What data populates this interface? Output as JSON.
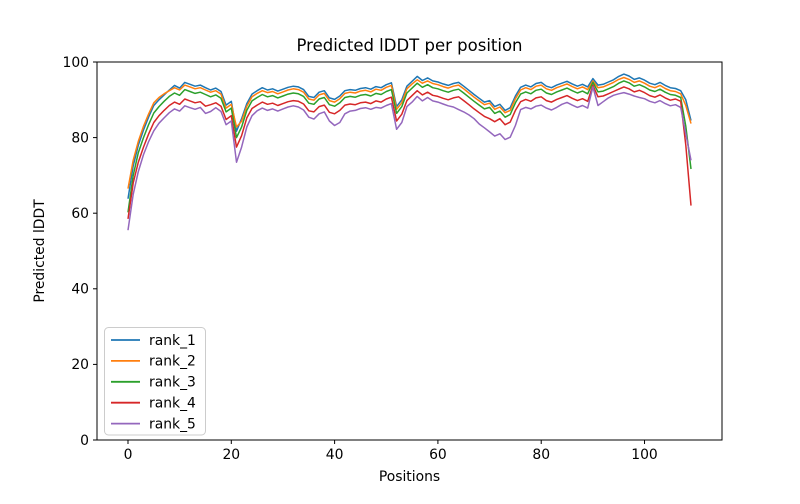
{
  "chart_data": {
    "type": "line",
    "title": "Predicted lDDT per position",
    "xlabel": "Positions",
    "ylabel": "Predicted lDDT",
    "xlim": [
      -6,
      115
    ],
    "ylim": [
      0,
      100
    ],
    "xticks": [
      0,
      20,
      40,
      60,
      80,
      100
    ],
    "yticks": [
      0,
      20,
      40,
      60,
      80,
      100
    ],
    "grid": false,
    "legend_position": "lower left",
    "legend_entries": [
      "rank_1",
      "rank_2",
      "rank_3",
      "rank_4",
      "rank_5"
    ],
    "x": [
      0,
      1,
      2,
      3,
      4,
      5,
      6,
      7,
      8,
      9,
      10,
      11,
      12,
      13,
      14,
      15,
      16,
      17,
      18,
      19,
      20,
      21,
      22,
      23,
      24,
      25,
      26,
      27,
      28,
      29,
      30,
      31,
      32,
      33,
      34,
      35,
      36,
      37,
      38,
      39,
      40,
      41,
      42,
      43,
      44,
      45,
      46,
      47,
      48,
      49,
      50,
      51,
      52,
      53,
      54,
      55,
      56,
      57,
      58,
      59,
      60,
      61,
      62,
      63,
      64,
      65,
      66,
      67,
      68,
      69,
      70,
      71,
      72,
      73,
      74,
      75,
      76,
      77,
      78,
      79,
      80,
      81,
      82,
      83,
      84,
      85,
      86,
      87,
      88,
      89,
      90,
      91,
      92,
      93,
      94,
      95,
      96,
      97,
      98,
      99,
      100,
      101,
      102,
      103,
      104,
      105,
      106,
      107,
      108,
      109
    ],
    "series": [
      {
        "name": "rank_1",
        "color": "#1f77b4",
        "values": [
          63.8,
          72.5,
          78.0,
          82.0,
          85.5,
          88.5,
          90.0,
          91.3,
          92.6,
          93.8,
          93.1,
          94.6,
          94.1,
          93.6,
          93.9,
          93.2,
          92.6,
          93.1,
          92.2,
          88.6,
          89.6,
          81.7,
          85.0,
          89.0,
          91.5,
          92.4,
          93.2,
          92.6,
          92.9,
          92.3,
          92.8,
          93.3,
          93.6,
          93.4,
          92.7,
          90.9,
          90.6,
          92.0,
          92.4,
          90.5,
          90.1,
          91.0,
          92.4,
          92.7,
          92.5,
          93.0,
          93.2,
          92.8,
          93.5,
          93.2,
          94.0,
          94.5,
          88.2,
          90.0,
          93.6,
          94.9,
          96.2,
          95.1,
          95.8,
          95.0,
          94.7,
          94.2,
          93.8,
          94.3,
          94.6,
          93.6,
          92.5,
          91.4,
          90.4,
          89.4,
          89.8,
          88.2,
          88.8,
          87.2,
          87.9,
          91.0,
          93.3,
          93.9,
          93.4,
          94.3,
          94.6,
          93.6,
          93.2,
          93.9,
          94.4,
          94.9,
          94.2,
          93.6,
          94.1,
          93.4,
          95.6,
          93.9,
          94.1,
          94.7,
          95.3,
          96.2,
          96.8,
          96.3,
          95.4,
          95.8,
          95.2,
          94.4,
          94.0,
          94.6,
          93.8,
          93.2,
          93.0,
          92.4,
          90.0,
          84.5
        ]
      },
      {
        "name": "rank_2",
        "color": "#ff7f0e",
        "values": [
          66.5,
          74.0,
          79.0,
          83.0,
          86.3,
          89.2,
          90.6,
          91.6,
          92.4,
          93.2,
          92.6,
          93.9,
          93.4,
          92.9,
          93.2,
          92.6,
          92.0,
          92.4,
          91.5,
          87.8,
          88.8,
          82.8,
          84.3,
          88.3,
          90.8,
          91.7,
          92.4,
          91.9,
          92.2,
          91.6,
          92.1,
          92.6,
          92.9,
          92.7,
          92.0,
          90.2,
          89.9,
          91.3,
          91.7,
          89.8,
          89.4,
          90.3,
          91.7,
          92.0,
          91.8,
          92.3,
          92.5,
          92.1,
          92.8,
          92.5,
          93.3,
          93.8,
          87.5,
          89.2,
          92.9,
          94.2,
          95.3,
          94.4,
          95.0,
          94.3,
          94.0,
          93.5,
          93.1,
          93.6,
          93.9,
          92.9,
          91.8,
          90.7,
          89.7,
          88.7,
          89.1,
          87.5,
          88.1,
          86.6,
          87.2,
          90.3,
          92.6,
          93.2,
          92.7,
          93.6,
          93.9,
          92.9,
          92.5,
          93.2,
          93.7,
          94.2,
          93.5,
          92.9,
          93.4,
          92.7,
          95.0,
          93.2,
          93.4,
          94.0,
          94.6,
          95.4,
          95.9,
          95.4,
          94.6,
          95.0,
          94.4,
          93.6,
          93.2,
          93.8,
          93.0,
          92.4,
          92.2,
          91.6,
          88.5,
          83.7
        ]
      },
      {
        "name": "rank_3",
        "color": "#2ca02c",
        "values": [
          60.2,
          70.0,
          76.0,
          80.0,
          83.5,
          86.5,
          88.2,
          89.6,
          90.9,
          91.8,
          91.2,
          92.7,
          92.2,
          91.7,
          92.0,
          91.4,
          90.8,
          91.3,
          90.4,
          86.8,
          87.8,
          80.0,
          82.8,
          87.2,
          89.7,
          90.6,
          91.4,
          90.8,
          91.1,
          90.5,
          91.0,
          91.5,
          91.8,
          91.6,
          90.9,
          89.1,
          88.8,
          90.2,
          90.6,
          88.7,
          88.3,
          89.2,
          90.6,
          90.9,
          90.7,
          91.2,
          91.4,
          91.0,
          91.7,
          91.4,
          92.2,
          92.7,
          86.4,
          88.2,
          91.8,
          93.1,
          94.4,
          93.3,
          94.0,
          93.2,
          92.9,
          92.4,
          92.0,
          92.5,
          92.8,
          91.8,
          90.7,
          89.6,
          88.6,
          87.6,
          88.0,
          86.4,
          87.0,
          85.4,
          86.1,
          89.2,
          91.5,
          92.1,
          91.6,
          92.5,
          92.8,
          91.8,
          91.4,
          92.1,
          92.6,
          93.1,
          92.4,
          91.8,
          92.3,
          91.6,
          94.6,
          92.1,
          92.3,
          92.9,
          93.5,
          94.4,
          95.0,
          94.5,
          93.6,
          94.0,
          93.4,
          92.6,
          92.2,
          92.8,
          92.0,
          91.4,
          91.2,
          90.6,
          83.0,
          71.7
        ]
      },
      {
        "name": "rank_4",
        "color": "#d62728",
        "values": [
          58.5,
          68.0,
          73.5,
          77.5,
          81.0,
          84.0,
          85.8,
          87.2,
          88.5,
          89.4,
          88.8,
          90.2,
          89.7,
          89.2,
          89.5,
          88.3,
          88.7,
          89.2,
          88.3,
          84.8,
          85.8,
          77.5,
          80.5,
          85.2,
          87.7,
          88.6,
          89.4,
          88.8,
          89.1,
          88.5,
          89.0,
          89.5,
          89.8,
          89.6,
          88.9,
          87.1,
          86.8,
          88.2,
          88.6,
          86.7,
          86.3,
          87.2,
          88.6,
          88.9,
          88.7,
          89.2,
          89.4,
          89.0,
          89.7,
          89.4,
          90.2,
          90.7,
          84.4,
          86.2,
          89.8,
          91.1,
          92.4,
          91.3,
          92.0,
          91.2,
          90.9,
          90.4,
          90.0,
          90.5,
          90.8,
          89.8,
          88.7,
          87.6,
          86.6,
          85.6,
          85.0,
          84.2,
          85.0,
          83.4,
          84.1,
          87.2,
          89.5,
          90.1,
          89.6,
          90.5,
          90.8,
          89.8,
          89.4,
          90.1,
          90.6,
          91.1,
          90.4,
          89.8,
          90.3,
          89.6,
          93.8,
          90.8,
          91.0,
          91.6,
          92.2,
          92.8,
          93.4,
          92.9,
          92.1,
          92.5,
          91.9,
          91.1,
          90.7,
          91.3,
          90.5,
          89.9,
          90.2,
          89.6,
          78.0,
          62.0
        ]
      },
      {
        "name": "rank_5",
        "color": "#9467bd",
        "values": [
          55.5,
          65.0,
          71.0,
          75.5,
          79.0,
          81.8,
          83.8,
          85.2,
          86.6,
          87.6,
          87.0,
          88.4,
          87.9,
          87.5,
          88.0,
          86.4,
          86.9,
          87.9,
          86.9,
          83.4,
          84.4,
          73.5,
          77.5,
          82.8,
          85.8,
          87.1,
          87.8,
          87.2,
          87.6,
          87.0,
          87.6,
          88.1,
          88.4,
          88.1,
          87.3,
          85.4,
          84.9,
          86.3,
          86.8,
          84.4,
          83.2,
          84.0,
          86.3,
          87.0,
          87.2,
          87.7,
          87.9,
          87.5,
          88.0,
          87.8,
          88.5,
          89.0,
          82.2,
          84.0,
          88.2,
          89.4,
          90.9,
          89.7,
          90.6,
          89.7,
          89.4,
          88.9,
          88.4,
          88.1,
          87.4,
          86.8,
          86.0,
          85.0,
          83.6,
          82.6,
          81.5,
          80.4,
          81.0,
          79.5,
          80.1,
          83.2,
          87.4,
          88.0,
          87.6,
          88.3,
          88.6,
          87.8,
          87.3,
          88.0,
          88.8,
          89.3,
          88.6,
          88.0,
          88.5,
          87.8,
          93.4,
          88.5,
          89.5,
          90.5,
          91.2,
          91.6,
          91.9,
          91.5,
          91.0,
          90.6,
          90.3,
          89.6,
          89.2,
          89.8,
          89.0,
          88.4,
          88.7,
          88.0,
          81.0,
          74.0
        ]
      }
    ]
  }
}
